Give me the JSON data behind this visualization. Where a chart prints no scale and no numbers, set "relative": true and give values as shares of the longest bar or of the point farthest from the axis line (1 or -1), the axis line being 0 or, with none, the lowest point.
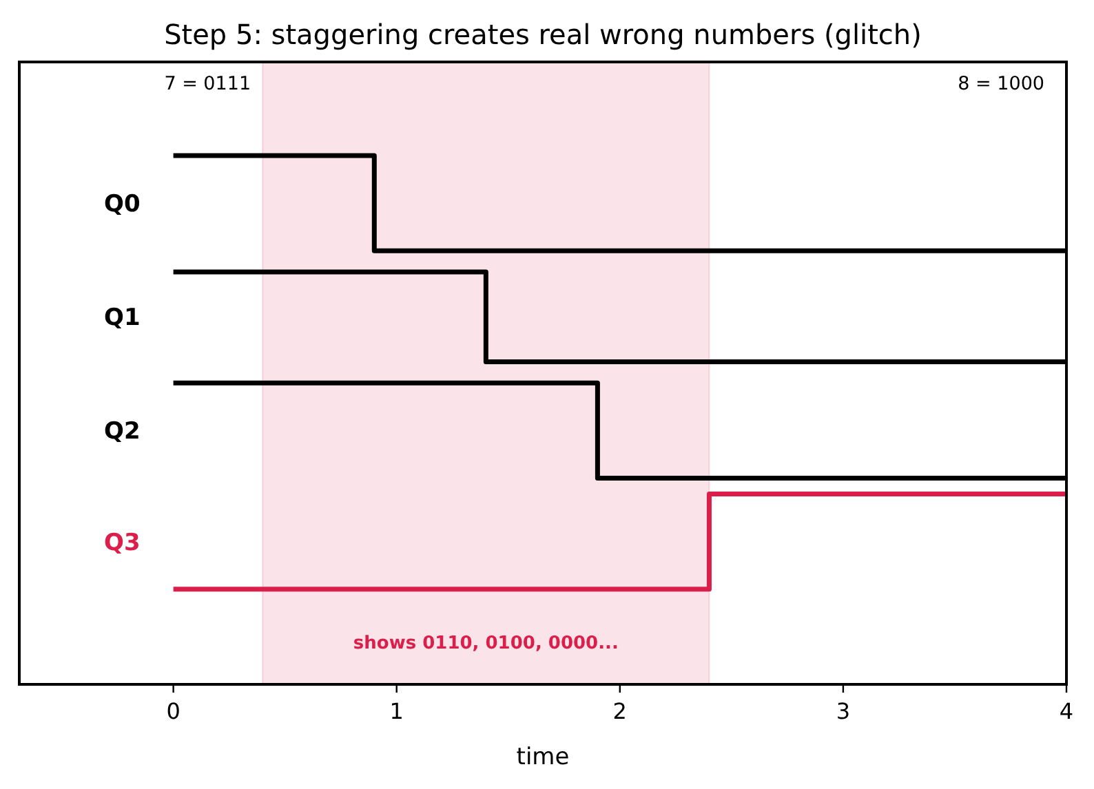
{
  "chart_data": {
    "type": "step",
    "title": "Step 5: staggering creates real wrong numbers (glitch)",
    "xlabel": "time",
    "relative": true,
    "xlim": [
      -0.69,
      4
    ],
    "xticks": [
      0,
      1,
      2,
      3,
      4
    ],
    "grid": false,
    "legend": false,
    "series": [
      {
        "name": "Q0",
        "color": "#000000",
        "x": [
          0,
          0.9,
          4
        ],
        "values": [
          1,
          0.82,
          0.82
        ]
      },
      {
        "name": "Q1",
        "color": "#000000",
        "x": [
          0,
          1.4,
          4
        ],
        "values": [
          0.78,
          0.61,
          0.61
        ]
      },
      {
        "name": "Q2",
        "color": "#000000",
        "x": [
          0,
          1.9,
          4
        ],
        "values": [
          0.57,
          0.39,
          0.39
        ]
      },
      {
        "name": "Q3",
        "color": "#dc1e4b",
        "x": [
          0,
          2.4,
          4
        ],
        "values": [
          0.18,
          0.36,
          0.36
        ]
      }
    ],
    "bands": [
      {
        "axis": "x",
        "from": 0.4,
        "to": 2.4,
        "label": "shows 0110, 0100, 0000...",
        "color": "#dc1e4b"
      }
    ],
    "annotations": [
      "7 = 0111",
      "8 = 1000"
    ]
  }
}
